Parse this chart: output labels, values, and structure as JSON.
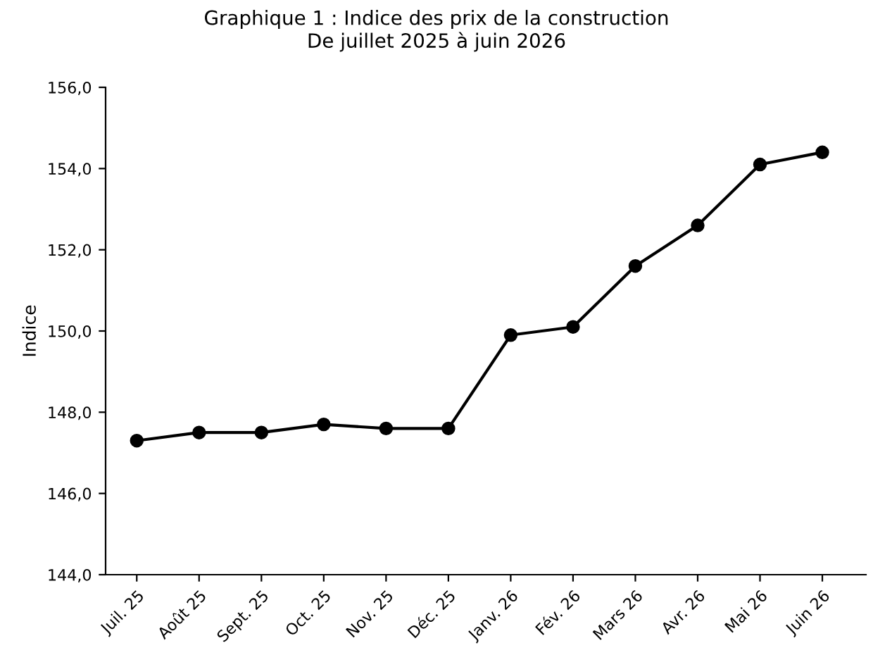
{
  "chart_data": {
    "type": "line",
    "title": "Graphique 1 : Indice des prix de la construction\nDe juillet 2025 à juin 2026",
    "ylabel": "Indice",
    "categories": [
      "Juil. 25",
      "Août 25",
      "Sept. 25",
      "Oct. 25",
      "Nov. 25",
      "Déc. 25",
      "Janv. 26",
      "Fév. 26",
      "Mars 26",
      "Avr. 26",
      "Mai 26",
      "Juin 26"
    ],
    "series": [
      {
        "color": "#000000",
        "values": [
          147.3,
          147.5,
          147.5,
          147.7,
          147.6,
          147.6,
          149.9,
          150.1,
          151.6,
          152.6,
          154.1,
          154.4
        ]
      }
    ],
    "ylim": [
      144,
      156
    ],
    "yticks": [
      {
        "value": 144,
        "label": "144,0"
      },
      {
        "value": 146,
        "label": "146,0"
      },
      {
        "value": 148,
        "label": "148,0"
      },
      {
        "value": 150,
        "label": "150,0"
      },
      {
        "value": 152,
        "label": "152,0"
      },
      {
        "value": 154,
        "label": "154,0"
      },
      {
        "value": 156,
        "label": "156,0"
      }
    ],
    "marker": "circle",
    "line_style": "solid",
    "grid": false,
    "legend": false
  }
}
